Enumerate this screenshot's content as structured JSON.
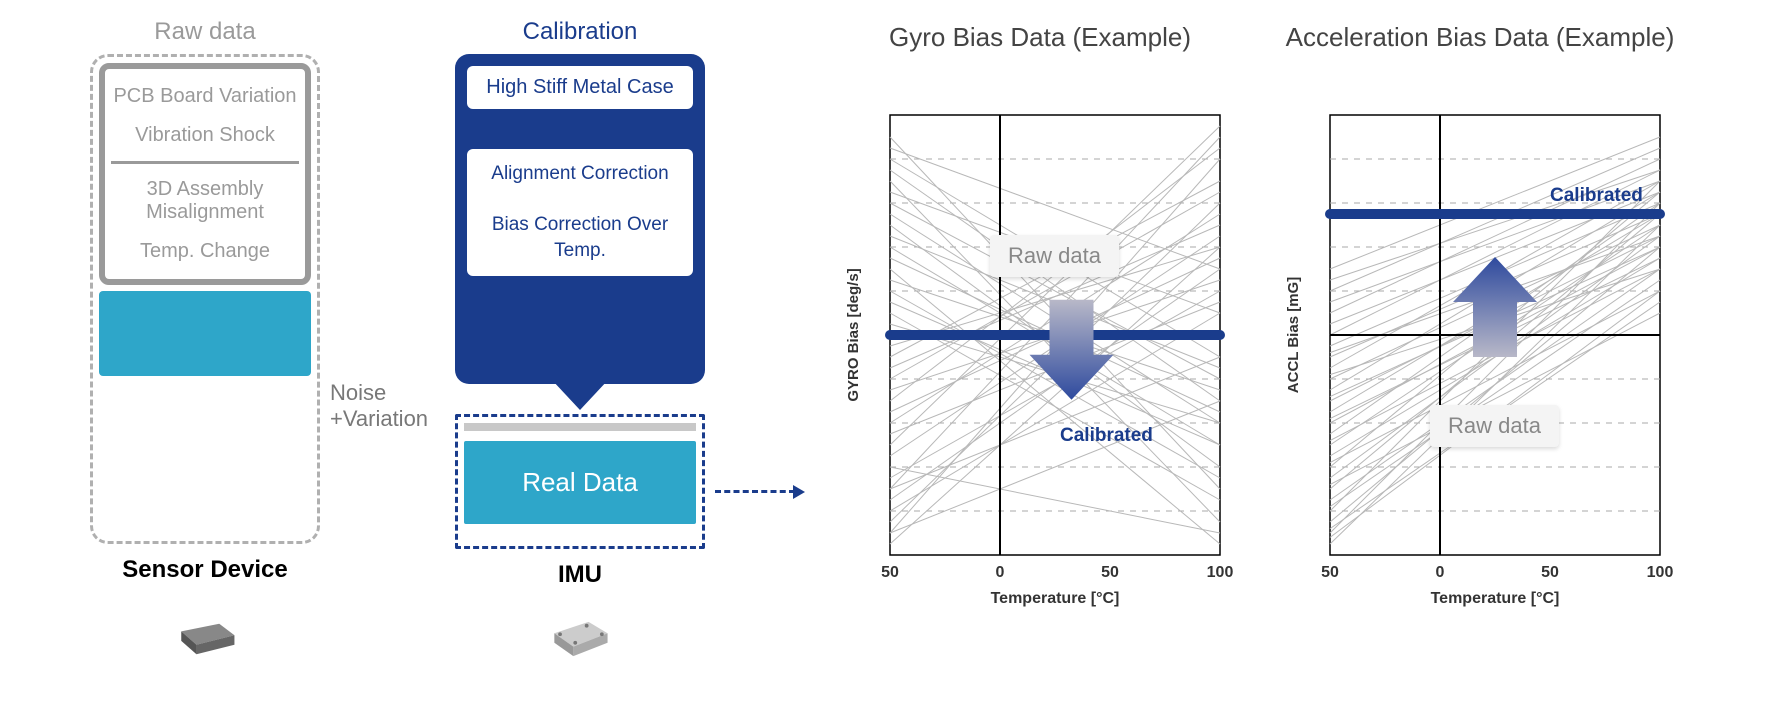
{
  "sensor": {
    "title": "Raw data",
    "items": [
      "PCB Board Variation",
      "Vibration Shock",
      "3D Assembly Misalignment",
      "Temp. Change"
    ],
    "label": "Sensor Device",
    "noise_label": "Noise\n+Variation"
  },
  "imu": {
    "title": "Calibration",
    "case_label": "High Stiff Metal Case",
    "corrections": "Alignment Correction\n\nBias Correction Over Temp.",
    "real_data": "Real Data",
    "label": "IMU"
  },
  "gyro_chart": {
    "title": "Gyro Bias Data (Example)",
    "ylabel": "GYRO Bias [deg/s]",
    "xlabel": "Temperature [°C]",
    "xticks": [
      "50",
      "0",
      "50",
      "100"
    ],
    "xlim": [
      -50,
      100
    ],
    "ylim": [
      -1,
      1
    ],
    "grid_y": [
      -0.8,
      -0.6,
      -0.4,
      -0.2,
      0.2,
      0.4,
      0.6,
      0.8
    ],
    "grid_color": "#aaaaaa",
    "axis_color": "#000000",
    "raw_color": "#b8b8b8",
    "calibrated_color": "#1a3c8c",
    "calibrated_y": 0.0,
    "raw_label": "Raw data",
    "calib_label": "Calibrated",
    "arrow_dir": "down",
    "arrow_fill": [
      "#b8b8c8",
      "#2e4a9e"
    ],
    "raw_lines": [
      {
        "y1": -0.9,
        "y2": 0.8
      },
      {
        "y1": -0.7,
        "y2": 0.9
      },
      {
        "y1": -0.85,
        "y2": 0.6
      },
      {
        "y1": -0.5,
        "y2": 0.95
      },
      {
        "y1": -0.95,
        "y2": 0.4
      },
      {
        "y1": -0.3,
        "y2": 0.85
      },
      {
        "y1": -0.6,
        "y2": -0.9
      },
      {
        "y1": 0.9,
        "y2": -0.7
      },
      {
        "y1": 0.7,
        "y2": -0.85
      },
      {
        "y1": 0.5,
        "y2": -0.6
      },
      {
        "y1": 0.3,
        "y2": -0.95
      },
      {
        "y1": -0.1,
        "y2": 0.7
      },
      {
        "y1": 0.1,
        "y2": -0.75
      },
      {
        "y1": -0.4,
        "y2": 0.55
      },
      {
        "y1": 0.4,
        "y2": -0.5
      },
      {
        "y1": -0.75,
        "y2": 0.3
      },
      {
        "y1": 0.75,
        "y2": -0.3
      },
      {
        "y1": -0.2,
        "y2": 0.65
      },
      {
        "y1": 0.2,
        "y2": -0.65
      },
      {
        "y1": -0.55,
        "y2": 0.45
      },
      {
        "y1": 0.55,
        "y2": -0.4
      },
      {
        "y1": -0.65,
        "y2": 0.2
      },
      {
        "y1": 0.6,
        "y2": -0.2
      },
      {
        "y1": -0.35,
        "y2": 0.35
      },
      {
        "y1": 0.35,
        "y2": -0.35
      },
      {
        "y1": -0.15,
        "y2": 0.5
      },
      {
        "y1": 0.15,
        "y2": -0.5
      },
      {
        "y1": -0.8,
        "y2": 0.1
      },
      {
        "y1": 0.8,
        "y2": -0.1
      },
      {
        "y1": -0.25,
        "y2": 0.25
      },
      {
        "y1": 0.25,
        "y2": -0.25
      },
      {
        "y1": -0.45,
        "y2": 0.15
      },
      {
        "y1": 0.45,
        "y2": -0.15
      },
      {
        "y1": -0.05,
        "y2": 0.4
      },
      {
        "y1": 0.05,
        "y2": -0.4
      },
      {
        "y1": -0.9,
        "y2": -0.3
      },
      {
        "y1": 0.85,
        "y2": 0.3
      },
      {
        "y1": -0.7,
        "y2": -0.1
      },
      {
        "y1": 0.65,
        "y2": 0.1
      }
    ]
  },
  "accl_chart": {
    "title": "Acceleration Bias Data (Example)",
    "ylabel": "ACCL Bias [mG]",
    "xlabel": "Temperature [°C]",
    "xticks": [
      "50",
      "0",
      "50",
      "100"
    ],
    "xlim": [
      -50,
      100
    ],
    "ylim": [
      -1,
      1
    ],
    "grid_y": [
      -0.8,
      -0.6,
      -0.4,
      -0.2,
      0.2,
      0.4,
      0.6,
      0.8
    ],
    "grid_color": "#aaaaaa",
    "axis_color": "#000000",
    "raw_color": "#b8b8b8",
    "calibrated_color": "#1a3c8c",
    "calibrated_y": 0.55,
    "raw_label": "Raw data",
    "calib_label": "Calibrated",
    "arrow_dir": "up",
    "arrow_fill": [
      "#b8b8c8",
      "#2e4a9e"
    ],
    "raw_lines": [
      {
        "y1": -0.95,
        "y2": 0.5
      },
      {
        "y1": -0.9,
        "y2": 0.6
      },
      {
        "y1": -0.85,
        "y2": 0.4
      },
      {
        "y1": -0.8,
        "y2": 0.7
      },
      {
        "y1": -0.75,
        "y2": 0.3
      },
      {
        "y1": -0.7,
        "y2": 0.55
      },
      {
        "y1": -0.65,
        "y2": 0.45
      },
      {
        "y1": -0.6,
        "y2": 0.65
      },
      {
        "y1": -0.55,
        "y2": 0.35
      },
      {
        "y1": -0.5,
        "y2": 0.5
      },
      {
        "y1": -0.45,
        "y2": 0.6
      },
      {
        "y1": -0.4,
        "y2": 0.4
      },
      {
        "y1": -0.35,
        "y2": 0.55
      },
      {
        "y1": -0.3,
        "y2": 0.45
      },
      {
        "y1": -0.25,
        "y2": 0.65
      },
      {
        "y1": -0.2,
        "y2": 0.5
      },
      {
        "y1": -0.15,
        "y2": 0.7
      },
      {
        "y1": -0.1,
        "y2": 0.55
      },
      {
        "y1": -0.05,
        "y2": 0.6
      },
      {
        "y1": 0.0,
        "y2": 0.75
      },
      {
        "y1": 0.05,
        "y2": 0.65
      },
      {
        "y1": 0.1,
        "y2": 0.8
      },
      {
        "y1": 0.15,
        "y2": 0.7
      },
      {
        "y1": 0.2,
        "y2": 0.85
      },
      {
        "y1": 0.25,
        "y2": 0.75
      },
      {
        "y1": 0.3,
        "y2": 0.9
      },
      {
        "y1": -0.92,
        "y2": 0.2
      },
      {
        "y1": -0.88,
        "y2": 0.15
      },
      {
        "y1": -0.78,
        "y2": 0.25
      },
      {
        "y1": -0.68,
        "y2": 0.1
      },
      {
        "y1": -0.58,
        "y2": 0.2
      },
      {
        "y1": -0.48,
        "y2": 0.3
      },
      {
        "y1": -0.38,
        "y2": 0.35
      },
      {
        "y1": -0.28,
        "y2": 0.4
      },
      {
        "y1": -0.18,
        "y2": 0.3
      },
      {
        "y1": -0.08,
        "y2": 0.45
      }
    ]
  },
  "colors": {
    "gray": "#9a9a9a",
    "navy": "#1a3c8c",
    "teal": "#2ea6c9",
    "chip_dark": "#5a5a5a",
    "chip_light": "#b0b0b0"
  }
}
